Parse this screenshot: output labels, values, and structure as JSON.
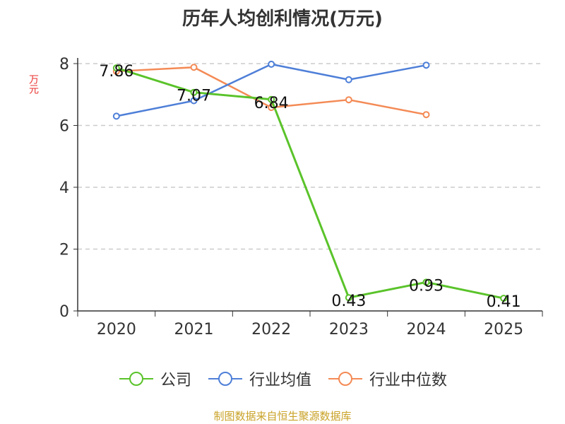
{
  "chart_data": {
    "type": "line",
    "title": "历年人均创利情况(万元)",
    "ylabel": "万元",
    "xlabel": "",
    "categories": [
      "2020",
      "2021",
      "2022",
      "2023",
      "2024",
      "2025"
    ],
    "ylim": [
      0,
      8
    ],
    "yticks": [
      0,
      2,
      4,
      6,
      8
    ],
    "grid": true,
    "legend_position": "bottom",
    "series": [
      {
        "name": "公司",
        "color": "#5ac32a",
        "values": [
          7.86,
          7.07,
          6.84,
          0.43,
          0.93,
          0.41
        ],
        "labels": [
          "7.86",
          "7.07",
          "6.84",
          "0.43",
          "0.93",
          "0.41"
        ]
      },
      {
        "name": "行业均值",
        "color": "#4e7fd8",
        "values": [
          6.3,
          6.8,
          7.98,
          7.48,
          7.95,
          null
        ]
      },
      {
        "name": "行业中位数",
        "color": "#f48a55",
        "values": [
          7.75,
          7.88,
          6.58,
          6.83,
          6.35,
          null
        ]
      }
    ]
  },
  "source": "制图数据来自恒生聚源数据库"
}
